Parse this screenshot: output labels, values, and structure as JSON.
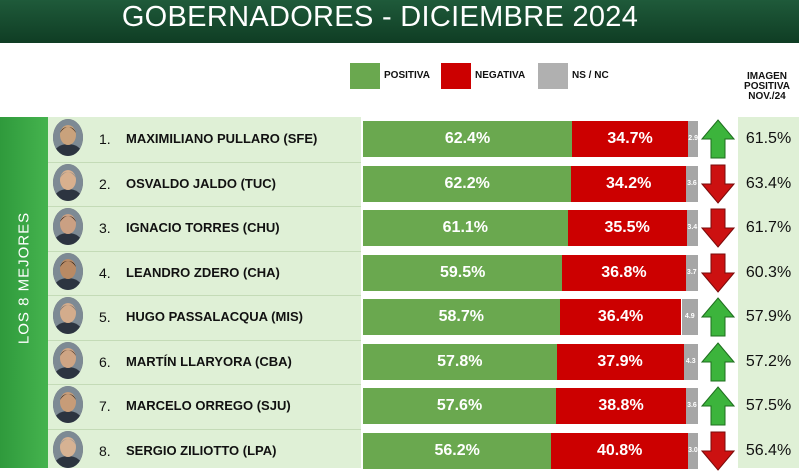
{
  "header": {
    "title": "GOBERNADORES - DICIEMBRE 2024"
  },
  "legend": [
    {
      "label": "POSITIVA",
      "color": "#6aa84f"
    },
    {
      "label": "NEGATIVA",
      "color": "#cc0000"
    },
    {
      "label": "NS / NC",
      "color": "#b0b0b0"
    }
  ],
  "side_label": "LOS 8 MEJORES",
  "previous_header": [
    "IMAGEN",
    "POSITIVA",
    "NOV./24"
  ],
  "colors": {
    "positive": "#6aa84f",
    "negative": "#cc0000",
    "nsnc": "#a6a6a6",
    "up_arrow": "#3cb43c",
    "down_arrow": "#cc1111"
  },
  "chart_data": {
    "type": "bar",
    "stacked": true,
    "orientation": "horizontal",
    "categories": [
      "MAXIMILIANO PULLARO (SFE)",
      "OSVALDO JALDO (TUC)",
      "IGNACIO TORRES (CHU)",
      "LEANDRO ZDERO (CHA)",
      "HUGO PASSALACQUA (MIS)",
      "MARTÍN LLARYORA (CBA)",
      "MARCELO ORREGO (SJU)",
      "SERGIO ZILIOTTO (LPA)"
    ],
    "ranks": [
      "1.",
      "2.",
      "3.",
      "4.",
      "5.",
      "6.",
      "7.",
      "8."
    ],
    "series": [
      {
        "name": "POSITIVA",
        "values": [
          62.4,
          62.2,
          61.1,
          59.5,
          58.7,
          57.8,
          57.6,
          56.2
        ],
        "labels": [
          "62.4%",
          "62.2%",
          "61.1%",
          "59.5%",
          "58.7%",
          "57.8%",
          "57.6%",
          "56.2%"
        ]
      },
      {
        "name": "NEGATIVA",
        "values": [
          34.7,
          34.2,
          35.5,
          36.8,
          36.4,
          37.9,
          38.8,
          40.8
        ],
        "labels": [
          "34.7%",
          "34.2%",
          "35.5%",
          "36.8%",
          "36.4%",
          "37.9%",
          "38.8%",
          "40.8%"
        ]
      },
      {
        "name": "NS / NC",
        "values": [
          2.9,
          3.6,
          3.4,
          3.7,
          4.9,
          4.3,
          3.6,
          3.0
        ],
        "labels": [
          "2.9",
          "3.6",
          "3.4",
          "3.7",
          "4.9",
          "4.3",
          "3.6",
          "3.0"
        ]
      }
    ],
    "xlim": [
      0,
      100
    ],
    "trend": [
      "up",
      "down",
      "down",
      "down",
      "up",
      "up",
      "up",
      "down"
    ],
    "previous_positive": {
      "values": [
        61.5,
        63.4,
        61.7,
        60.3,
        57.9,
        57.2,
        57.5,
        56.4
      ],
      "labels": [
        "61.5%",
        "63.4%",
        "61.7%",
        "60.3%",
        "57.9%",
        "57.2%",
        "57.5%",
        "56.4%"
      ]
    }
  }
}
